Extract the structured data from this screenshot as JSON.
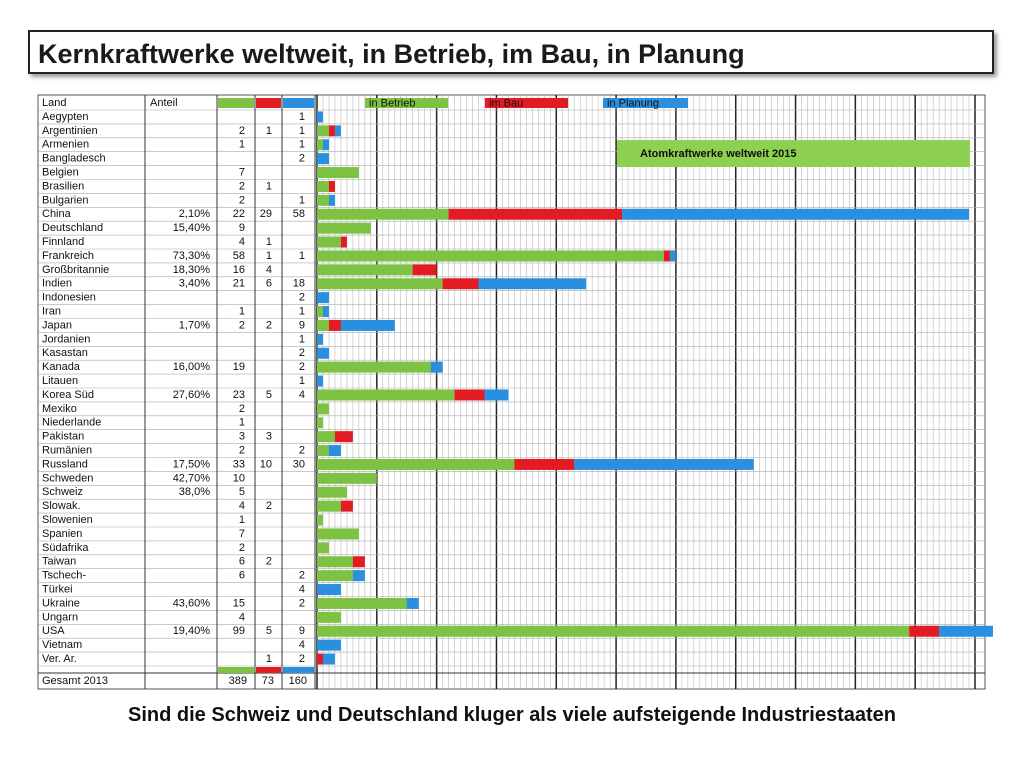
{
  "header": {
    "title": "Kernkraftwerke weltweit, in Betrieb, im Bau, in Planung"
  },
  "footer": {
    "text": "Sind die Schweiz und Deutschland kluger als viele aufsteigende Industriestaaten"
  },
  "table": {
    "columns": [
      "Land",
      "Anteil"
    ],
    "rows": [
      {
        "land": "Aegypten",
        "anteil": null,
        "betrieb": null,
        "bau": null,
        "planung": 1
      },
      {
        "land": "Argentinien",
        "anteil": null,
        "betrieb": 2,
        "bau": 1,
        "planung": 1
      },
      {
        "land": "Armenien",
        "anteil": null,
        "betrieb": 1,
        "bau": null,
        "planung": 1
      },
      {
        "land": "Bangladesch",
        "anteil": null,
        "betrieb": null,
        "bau": null,
        "planung": 2
      },
      {
        "land": "Belgien",
        "anteil": null,
        "betrieb": 7,
        "bau": null,
        "planung": null
      },
      {
        "land": "Brasilien",
        "anteil": null,
        "betrieb": 2,
        "bau": 1,
        "planung": null
      },
      {
        "land": "Bulgarien",
        "anteil": null,
        "betrieb": 2,
        "bau": null,
        "planung": 1
      },
      {
        "land": "China",
        "anteil": "2,10%",
        "betrieb": 22,
        "bau": 29,
        "planung": 58
      },
      {
        "land": "Deutschland",
        "anteil": "15,40%",
        "betrieb": 9,
        "bau": null,
        "planung": null
      },
      {
        "land": "Finnland",
        "anteil": null,
        "betrieb": 4,
        "bau": 1,
        "planung": null
      },
      {
        "land": "Frankreich",
        "anteil": "73,30%",
        "betrieb": 58,
        "bau": 1,
        "planung": 1
      },
      {
        "land": "Großbritannie",
        "anteil": "18,30%",
        "betrieb": 16,
        "bau": 4,
        "planung": null
      },
      {
        "land": "Indien",
        "anteil": "3,40%",
        "betrieb": 21,
        "bau": 6,
        "planung": 18
      },
      {
        "land": "Indonesien",
        "anteil": null,
        "betrieb": null,
        "bau": null,
        "planung": 2
      },
      {
        "land": "Iran",
        "anteil": null,
        "betrieb": 1,
        "bau": null,
        "planung": 1
      },
      {
        "land": "Japan",
        "anteil": "1,70%",
        "betrieb": 2,
        "bau": 2,
        "planung": 9
      },
      {
        "land": "Jordanien",
        "anteil": null,
        "betrieb": null,
        "bau": null,
        "planung": 1
      },
      {
        "land": "Kasastan",
        "anteil": null,
        "betrieb": null,
        "bau": null,
        "planung": 2
      },
      {
        "land": "Kanada",
        "anteil": "16,00%",
        "betrieb": 19,
        "bau": null,
        "planung": 2
      },
      {
        "land": "Litauen",
        "anteil": null,
        "betrieb": null,
        "bau": null,
        "planung": 1
      },
      {
        "land": "Korea Süd",
        "anteil": "27,60%",
        "betrieb": 23,
        "bau": 5,
        "planung": 4
      },
      {
        "land": "Mexiko",
        "anteil": null,
        "betrieb": 2,
        "bau": null,
        "planung": null
      },
      {
        "land": "Niederlande",
        "anteil": null,
        "betrieb": 1,
        "bau": null,
        "planung": null
      },
      {
        "land": "Pakistan",
        "anteil": null,
        "betrieb": 3,
        "bau": 3,
        "planung": null
      },
      {
        "land": "Rumänien",
        "anteil": null,
        "betrieb": 2,
        "bau": null,
        "planung": 2
      },
      {
        "land": "Russland",
        "anteil": "17,50%",
        "betrieb": 33,
        "bau": 10,
        "planung": 30
      },
      {
        "land": "Schweden",
        "anteil": "42,70%",
        "betrieb": 10,
        "bau": null,
        "planung": null
      },
      {
        "land": "Schweiz",
        "anteil": "38,0%",
        "betrieb": 5,
        "bau": null,
        "planung": null
      },
      {
        "land": "Slowak.",
        "anteil": null,
        "betrieb": 4,
        "bau": 2,
        "planung": null
      },
      {
        "land": "Slowenien",
        "anteil": null,
        "betrieb": 1,
        "bau": null,
        "planung": null
      },
      {
        "land": "Spanien",
        "anteil": null,
        "betrieb": 7,
        "bau": null,
        "planung": null
      },
      {
        "land": "Südafrika",
        "anteil": null,
        "betrieb": 2,
        "bau": null,
        "planung": null
      },
      {
        "land": "Taiwan",
        "anteil": null,
        "betrieb": 6,
        "bau": 2,
        "planung": null
      },
      {
        "land": "Tschech-",
        "anteil": null,
        "betrieb": 6,
        "bau": null,
        "planung": 2
      },
      {
        "land": "Türkei",
        "anteil": null,
        "betrieb": null,
        "bau": null,
        "planung": 4
      },
      {
        "land": "Ukraine",
        "anteil": "43,60%",
        "betrieb": 15,
        "bau": null,
        "planung": 2
      },
      {
        "land": "Ungarn",
        "anteil": null,
        "betrieb": 4,
        "bau": null,
        "planung": null
      },
      {
        "land": "USA",
        "anteil": "19,40%",
        "betrieb": 99,
        "bau": 5,
        "planung": 9
      },
      {
        "land": "Vietnam",
        "anteil": null,
        "betrieb": null,
        "bau": null,
        "planung": 4
      },
      {
        "land": "Ver. Ar.",
        "anteil": null,
        "betrieb": null,
        "bau": 1,
        "planung": 2
      }
    ],
    "total": {
      "label": "Gesamt 2013",
      "betrieb": 389,
      "bau": 73,
      "planung": 160
    }
  },
  "chart": {
    "type": "stacked-bar",
    "title": "Atomkraftwerke weltweit 2015",
    "xlim": [
      0,
      110
    ],
    "grid": true,
    "series": [
      {
        "key": "betrieb",
        "name": "in Betrieb",
        "color": "#7dc242"
      },
      {
        "key": "bau",
        "name": "im Bau",
        "color": "#e31b23"
      },
      {
        "key": "planung",
        "name": "in Planung",
        "color": "#2b8fe0"
      }
    ]
  }
}
